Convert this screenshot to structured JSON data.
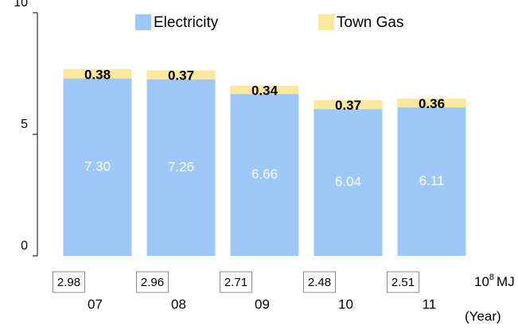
{
  "chart_data": {
    "type": "stacked_bar",
    "categories": [
      "07",
      "08",
      "09",
      "10",
      "11"
    ],
    "series": [
      {
        "name": "Electricity",
        "color": "#9ec8f7",
        "values": [
          7.3,
          7.26,
          6.66,
          6.04,
          6.11
        ],
        "value_labels": [
          "7.30",
          "7.26",
          "6.66",
          "6.04",
          "6.11"
        ]
      },
      {
        "name": "Town Gas",
        "color": "#fde89c",
        "values": [
          0.38,
          0.37,
          0.34,
          0.37,
          0.36
        ]
      }
    ],
    "ylim": [
      0,
      10
    ],
    "yticks": [
      0,
      5,
      10
    ],
    "boxed_values": [
      2.98,
      2.96,
      2.71,
      2.48,
      2.51
    ],
    "unit_label": {
      "base": "10",
      "exponent": "8",
      "unit": "MJ"
    },
    "x_label": "(Year)",
    "legend": "top"
  }
}
